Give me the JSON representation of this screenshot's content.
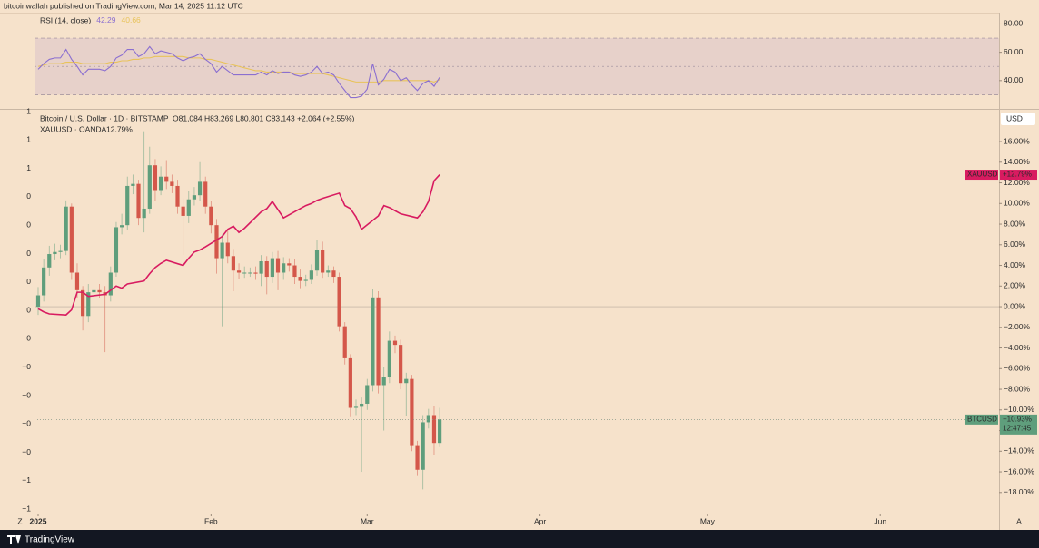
{
  "header": {
    "publisher": "bitcoinwallah published on TradingView.com, Mar 14, 2025 11:12 UTC"
  },
  "footer": {
    "brand": "TradingView"
  },
  "ui": {
    "zoom": "Z",
    "auto": "A"
  },
  "chart_data": [
    {
      "type": "rsi",
      "title": "RSI (14, close)",
      "xlim": [
        -0.65,
        172.3
      ],
      "ylim": [
        20,
        88
      ],
      "yticks": [
        {
          "value": 80,
          "label": "80.00"
        },
        {
          "value": 60,
          "label": "60.00"
        },
        {
          "value": 40,
          "label": "40.00"
        }
      ],
      "band": [
        30,
        70
      ],
      "midline": 50,
      "band_color": "#7e57c2",
      "series": [
        {
          "color": "#8b6fd0",
          "values": [
            48,
            52,
            55,
            56,
            56,
            62,
            55,
            50,
            44,
            48,
            48,
            48,
            47,
            50,
            56,
            58,
            62,
            62,
            57,
            59,
            64,
            59,
            61,
            60,
            59,
            56,
            54,
            56,
            57,
            59,
            55,
            52,
            46,
            50,
            47,
            44,
            44,
            44,
            44,
            44,
            46,
            44,
            47,
            45,
            46,
            46,
            44,
            43,
            44,
            46,
            50,
            45,
            46,
            44,
            38,
            33,
            28,
            28,
            29,
            34,
            52,
            37,
            41,
            48,
            46,
            40,
            42,
            37,
            33,
            38,
            40,
            36,
            42.29
          ]
        },
        {
          "color": "#e8c35a",
          "values": [
            50,
            51,
            52,
            52,
            52,
            53,
            53,
            53,
            52,
            52,
            52,
            52,
            52,
            53,
            53,
            54,
            54,
            55,
            55,
            56,
            56,
            57,
            57,
            57,
            57,
            57,
            57,
            56,
            56,
            56,
            55,
            55,
            54,
            53,
            52,
            51,
            50,
            49,
            48,
            47,
            47,
            46,
            46,
            46,
            46,
            46,
            45,
            45,
            45,
            45,
            45,
            45,
            44,
            43,
            42,
            41,
            40,
            39,
            39,
            39,
            39,
            39,
            40,
            40,
            40,
            40,
            40,
            40,
            40,
            40,
            40,
            39,
            40.66
          ]
        }
      ]
    },
    {
      "type": "candlestick",
      "title": "Bitcoin / U.S. Dollar · 1D · BITSTAMP",
      "info": "O81,084 H83,269 L80,801 C83,143 +2,064 (+2.55%)",
      "unit": "USD",
      "categories": [
        null,
        null,
        null,
        null,
        null,
        null,
        null,
        null,
        null,
        null,
        null,
        null,
        null,
        null,
        null,
        null,
        null,
        null,
        null,
        null,
        null,
        null,
        null,
        null,
        null,
        null,
        null,
        null,
        null,
        null,
        null,
        null,
        null,
        null,
        null,
        null,
        null,
        null,
        null,
        null,
        null,
        null,
        null,
        null,
        null,
        null,
        null,
        null,
        null,
        null,
        null,
        null,
        null,
        null,
        null,
        null,
        null,
        null,
        null,
        null,
        null,
        null,
        null,
        null,
        null,
        null,
        null,
        null,
        null,
        null,
        null,
        null,
        null
      ],
      "open": [
        0,
        1.1,
        3.8,
        5.1,
        5.3,
        5.4,
        9.7,
        3.3,
        1.6,
        -0.9,
        1.4,
        1.6,
        1.4,
        1.1,
        3.3,
        7.7,
        7.9,
        11.7,
        11.9,
        8.6,
        9.5,
        13.7,
        11.3,
        12.6,
        12.1,
        11.7,
        9.7,
        8.8,
        10.4,
        10.8,
        12.1,
        9.7,
        7.9,
        4.7,
        6.2,
        4.9,
        3.5,
        3.3,
        3.3,
        3.3,
        3.2,
        4.4,
        2.9,
        4.7,
        3.3,
        4.2,
        4.0,
        2.9,
        2.5,
        2.6,
        3.5,
        5.5,
        3.3,
        3.5,
        2.9,
        -1.9,
        -5.0,
        -9.8,
        -9.7,
        -9.4,
        -7.6,
        0.9,
        -7.6,
        -6.8,
        -3.3,
        -3.7,
        -7.4,
        -7.0,
        -13.5,
        -15.8,
        -11.2,
        -10.5,
        -13.2
      ],
      "high": [
        1.9,
        4.6,
        5.9,
        6.1,
        6.0,
        10.3,
        10.0,
        4.2,
        2.0,
        2.2,
        2.3,
        2.2,
        2.0,
        3.9,
        8.2,
        9.0,
        12.6,
        12.8,
        12.3,
        17.0,
        15.5,
        14.3,
        13.6,
        14.2,
        12.8,
        12.3,
        10.5,
        11.2,
        11.6,
        14.0,
        12.6,
        10.2,
        8.5,
        7.0,
        7.4,
        5.6,
        4.2,
        3.9,
        3.8,
        3.9,
        5.0,
        4.9,
        5.3,
        5.4,
        4.8,
        4.7,
        4.6,
        3.6,
        3.1,
        4.1,
        6.5,
        6.3,
        4.0,
        3.9,
        3.3,
        -1.5,
        -4.6,
        -9.0,
        -8.8,
        -7.0,
        1.7,
        1.5,
        -5.8,
        -2.4,
        -2.8,
        -3.2,
        -6.4,
        -6.6,
        -13.0,
        -10.5,
        -9.9,
        -9.6,
        -9.8
      ],
      "low": [
        -0.8,
        0.5,
        3.0,
        4.5,
        4.7,
        5.0,
        2.6,
        0.8,
        -2.3,
        -1.5,
        0.7,
        0.8,
        -4.4,
        0.5,
        2.9,
        7.0,
        7.4,
        10.9,
        7.9,
        7.2,
        9.0,
        10.2,
        10.8,
        11.4,
        11.0,
        9.0,
        5.0,
        8.1,
        9.8,
        10.2,
        9.0,
        7.1,
        3.2,
        -1.9,
        4.2,
        1.5,
        2.7,
        2.8,
        2.9,
        2.6,
        2.0,
        1.2,
        2.3,
        1.6,
        2.6,
        3.4,
        2.2,
        1.8,
        2.0,
        2.2,
        3.0,
        2.8,
        2.9,
        2.3,
        -2.4,
        -5.6,
        -10.7,
        -10.5,
        -16.0,
        -10.0,
        -8.2,
        -8.4,
        -12.0,
        -7.4,
        -4.5,
        -8.0,
        -10.6,
        -14.0,
        -16.4,
        -17.7,
        -11.8,
        -14.4,
        -13.6
      ],
      "close": [
        1.1,
        3.8,
        5.1,
        5.3,
        5.4,
        9.7,
        3.3,
        1.6,
        -0.9,
        1.4,
        1.6,
        1.4,
        1.1,
        3.3,
        7.7,
        7.9,
        11.7,
        11.9,
        8.6,
        9.5,
        13.7,
        11.3,
        12.6,
        12.1,
        11.7,
        9.7,
        8.8,
        10.4,
        10.8,
        12.1,
        9.7,
        7.9,
        4.7,
        6.2,
        4.9,
        3.5,
        3.3,
        3.3,
        3.3,
        3.2,
        4.4,
        2.9,
        4.7,
        3.3,
        4.2,
        4.0,
        2.9,
        2.5,
        2.6,
        3.5,
        5.5,
        3.3,
        3.5,
        2.9,
        -1.9,
        -5.0,
        -9.8,
        -9.7,
        -9.4,
        -7.6,
        0.9,
        -7.6,
        -6.8,
        -3.3,
        -3.7,
        -7.4,
        -7.0,
        -13.5,
        -15.8,
        -11.2,
        -10.5,
        -13.2,
        -10.93
      ],
      "up_color": "#5f9e7c",
      "down_color": "#d4574a",
      "series": [
        {
          "name": "XAUUSD · OANDA",
          "color": "#d81b60",
          "x": [
            0,
            1,
            2,
            5,
            6,
            7,
            8,
            9,
            12,
            13,
            14,
            15,
            16,
            19,
            20,
            21,
            22,
            23,
            26,
            27,
            28,
            29,
            30,
            33,
            34,
            35,
            36,
            37,
            40,
            41,
            42,
            43,
            44,
            47,
            48,
            49,
            50,
            51,
            54,
            55,
            56,
            57,
            58,
            61,
            62,
            63,
            64,
            65,
            68,
            69,
            70,
            71,
            72
          ],
          "values": [
            -0.2,
            -0.5,
            -0.7,
            -0.8,
            -0.3,
            1.4,
            1.4,
            1.0,
            1.2,
            1.6,
            2.0,
            1.8,
            2.2,
            2.5,
            3.2,
            3.8,
            4.2,
            4.5,
            4.0,
            4.7,
            5.3,
            5.5,
            5.8,
            6.8,
            7.5,
            7.8,
            7.2,
            7.6,
            9.2,
            9.5,
            10.2,
            9.4,
            8.6,
            9.5,
            9.8,
            10.0,
            10.3,
            10.5,
            11.0,
            9.8,
            9.5,
            8.7,
            7.5,
            8.8,
            9.8,
            9.6,
            9.3,
            9.0,
            8.6,
            9.2,
            10.2,
            12.2,
            12.79
          ],
          "value_labels": [
            null,
            null,
            null,
            null,
            null,
            null,
            null,
            null,
            null,
            null,
            null,
            null,
            null,
            null,
            null,
            null,
            null,
            null,
            null,
            null,
            null,
            null,
            null,
            null,
            null,
            null,
            null,
            null,
            null,
            null,
            null,
            null,
            null,
            null,
            null,
            null,
            null,
            null,
            null,
            null,
            null,
            null,
            null,
            null,
            null,
            null,
            null,
            null,
            null,
            null,
            null,
            null,
            "12.79%"
          ]
        }
      ],
      "badges": [
        {
          "name": "XAUUSD",
          "value": 12.79,
          "label": "+12.79%",
          "color": "#d81b60"
        },
        {
          "name": "BTCUSD",
          "value": -10.93,
          "label": "−10.93%",
          "countdown": "12:47:45",
          "color": "#5f9e7c"
        }
      ],
      "zero_line": 0,
      "xlim": [
        -0.65,
        172.3
      ],
      "ylim": [
        -20.04,
        19.08
      ],
      "xticks": [
        {
          "value": 0,
          "label": "2025"
        },
        {
          "value": 31,
          "label": "Feb"
        },
        {
          "value": 59,
          "label": "Mar"
        },
        {
          "value": 90,
          "label": "Apr"
        },
        {
          "value": 120,
          "label": "May"
        },
        {
          "value": 151,
          "label": "Jun"
        }
      ],
      "yticks": [
        {
          "value": 16,
          "label": "16.00%"
        },
        {
          "value": 14,
          "label": "14.00%"
        },
        {
          "value": 12,
          "label": "12.00%"
        },
        {
          "value": 10,
          "label": "10.00%"
        },
        {
          "value": 8,
          "label": "8.00%"
        },
        {
          "value": 6,
          "label": "6.00%"
        },
        {
          "value": 4,
          "label": "4.00%"
        },
        {
          "value": 2,
          "label": "2.00%"
        },
        {
          "value": 0,
          "label": "0.00%"
        },
        {
          "value": -2,
          "label": "−2.00%"
        },
        {
          "value": -4,
          "label": "−4.00%"
        },
        {
          "value": -6,
          "label": "−6.00%"
        },
        {
          "value": -8,
          "label": "−8.00%"
        },
        {
          "value": -10,
          "label": "−10.00%"
        },
        {
          "value": -12,
          "label": "−12.00%"
        },
        {
          "value": -14,
          "label": "−14.00%"
        },
        {
          "value": -16,
          "label": "−16.00%"
        },
        {
          "value": -18,
          "label": "−18.00%"
        }
      ],
      "left_axis_labels": [
        "1",
        "1",
        "1",
        "0",
        "0",
        "0",
        "0",
        "0",
        "−0",
        "−0",
        "−0",
        "−0",
        "−0",
        "−1",
        "−1"
      ]
    }
  ]
}
